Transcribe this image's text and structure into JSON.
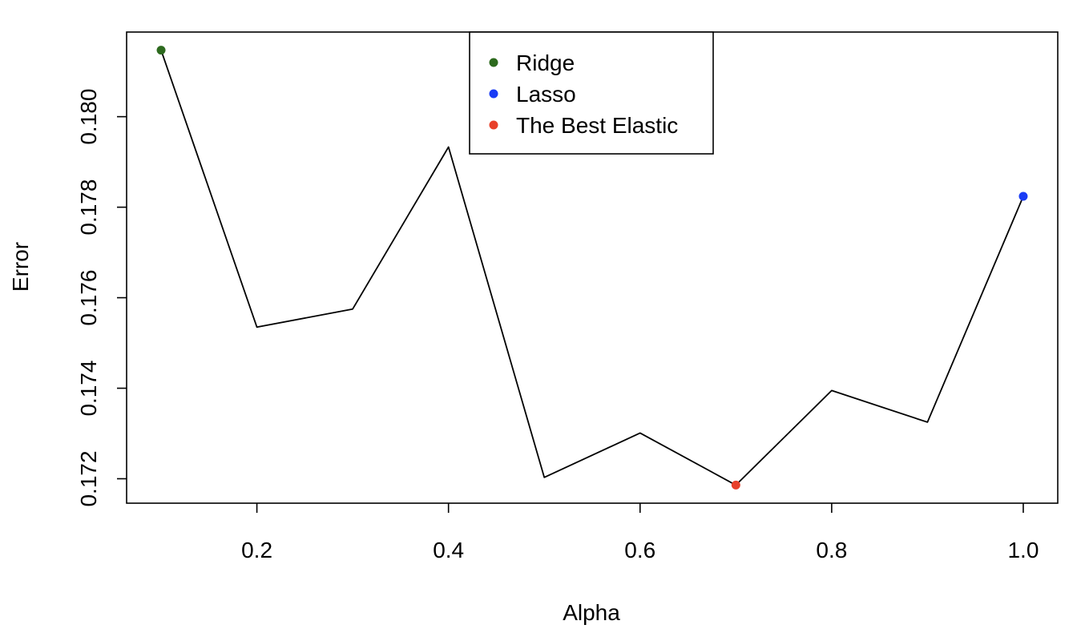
{
  "chart_data": {
    "type": "line",
    "title": "",
    "xlabel": "Alpha",
    "ylabel": "Error",
    "x": [
      0.1,
      0.2,
      0.3,
      0.4,
      0.5,
      0.6,
      0.7,
      0.8,
      0.9,
      1.0
    ],
    "series": [
      {
        "values": [
          0.18147,
          0.17535,
          0.17575,
          0.17933,
          0.17203,
          0.17301,
          0.17186,
          0.17395,
          0.17325,
          0.17824
        ],
        "color": "#000000"
      }
    ],
    "highlights": [
      {
        "name": "Ridge",
        "x": 0.1,
        "y": 0.18147,
        "color": "#2D6A1E"
      },
      {
        "name": "Lasso",
        "x": 1.0,
        "y": 0.17824,
        "color": "#1A3CF5"
      },
      {
        "name": "The Best Elastic",
        "x": 0.7,
        "y": 0.17186,
        "color": "#E8402A"
      }
    ],
    "xticks": [
      0.2,
      0.4,
      0.6,
      0.8,
      1.0
    ],
    "xtick_labels": [
      "0.2",
      "0.4",
      "0.6",
      "0.8",
      "1.0"
    ],
    "yticks": [
      0.172,
      0.174,
      0.176,
      0.178,
      0.18
    ],
    "ytick_labels": [
      "0.172",
      "0.174",
      "0.176",
      "0.178",
      "0.180"
    ],
    "xlim": [
      0.064,
      1.036
    ],
    "ylim": [
      0.17146,
      0.18187
    ],
    "grid": false,
    "legend": {
      "position": "top-center",
      "entries": [
        "Ridge",
        "Lasso",
        "The Best Elastic"
      ]
    }
  }
}
